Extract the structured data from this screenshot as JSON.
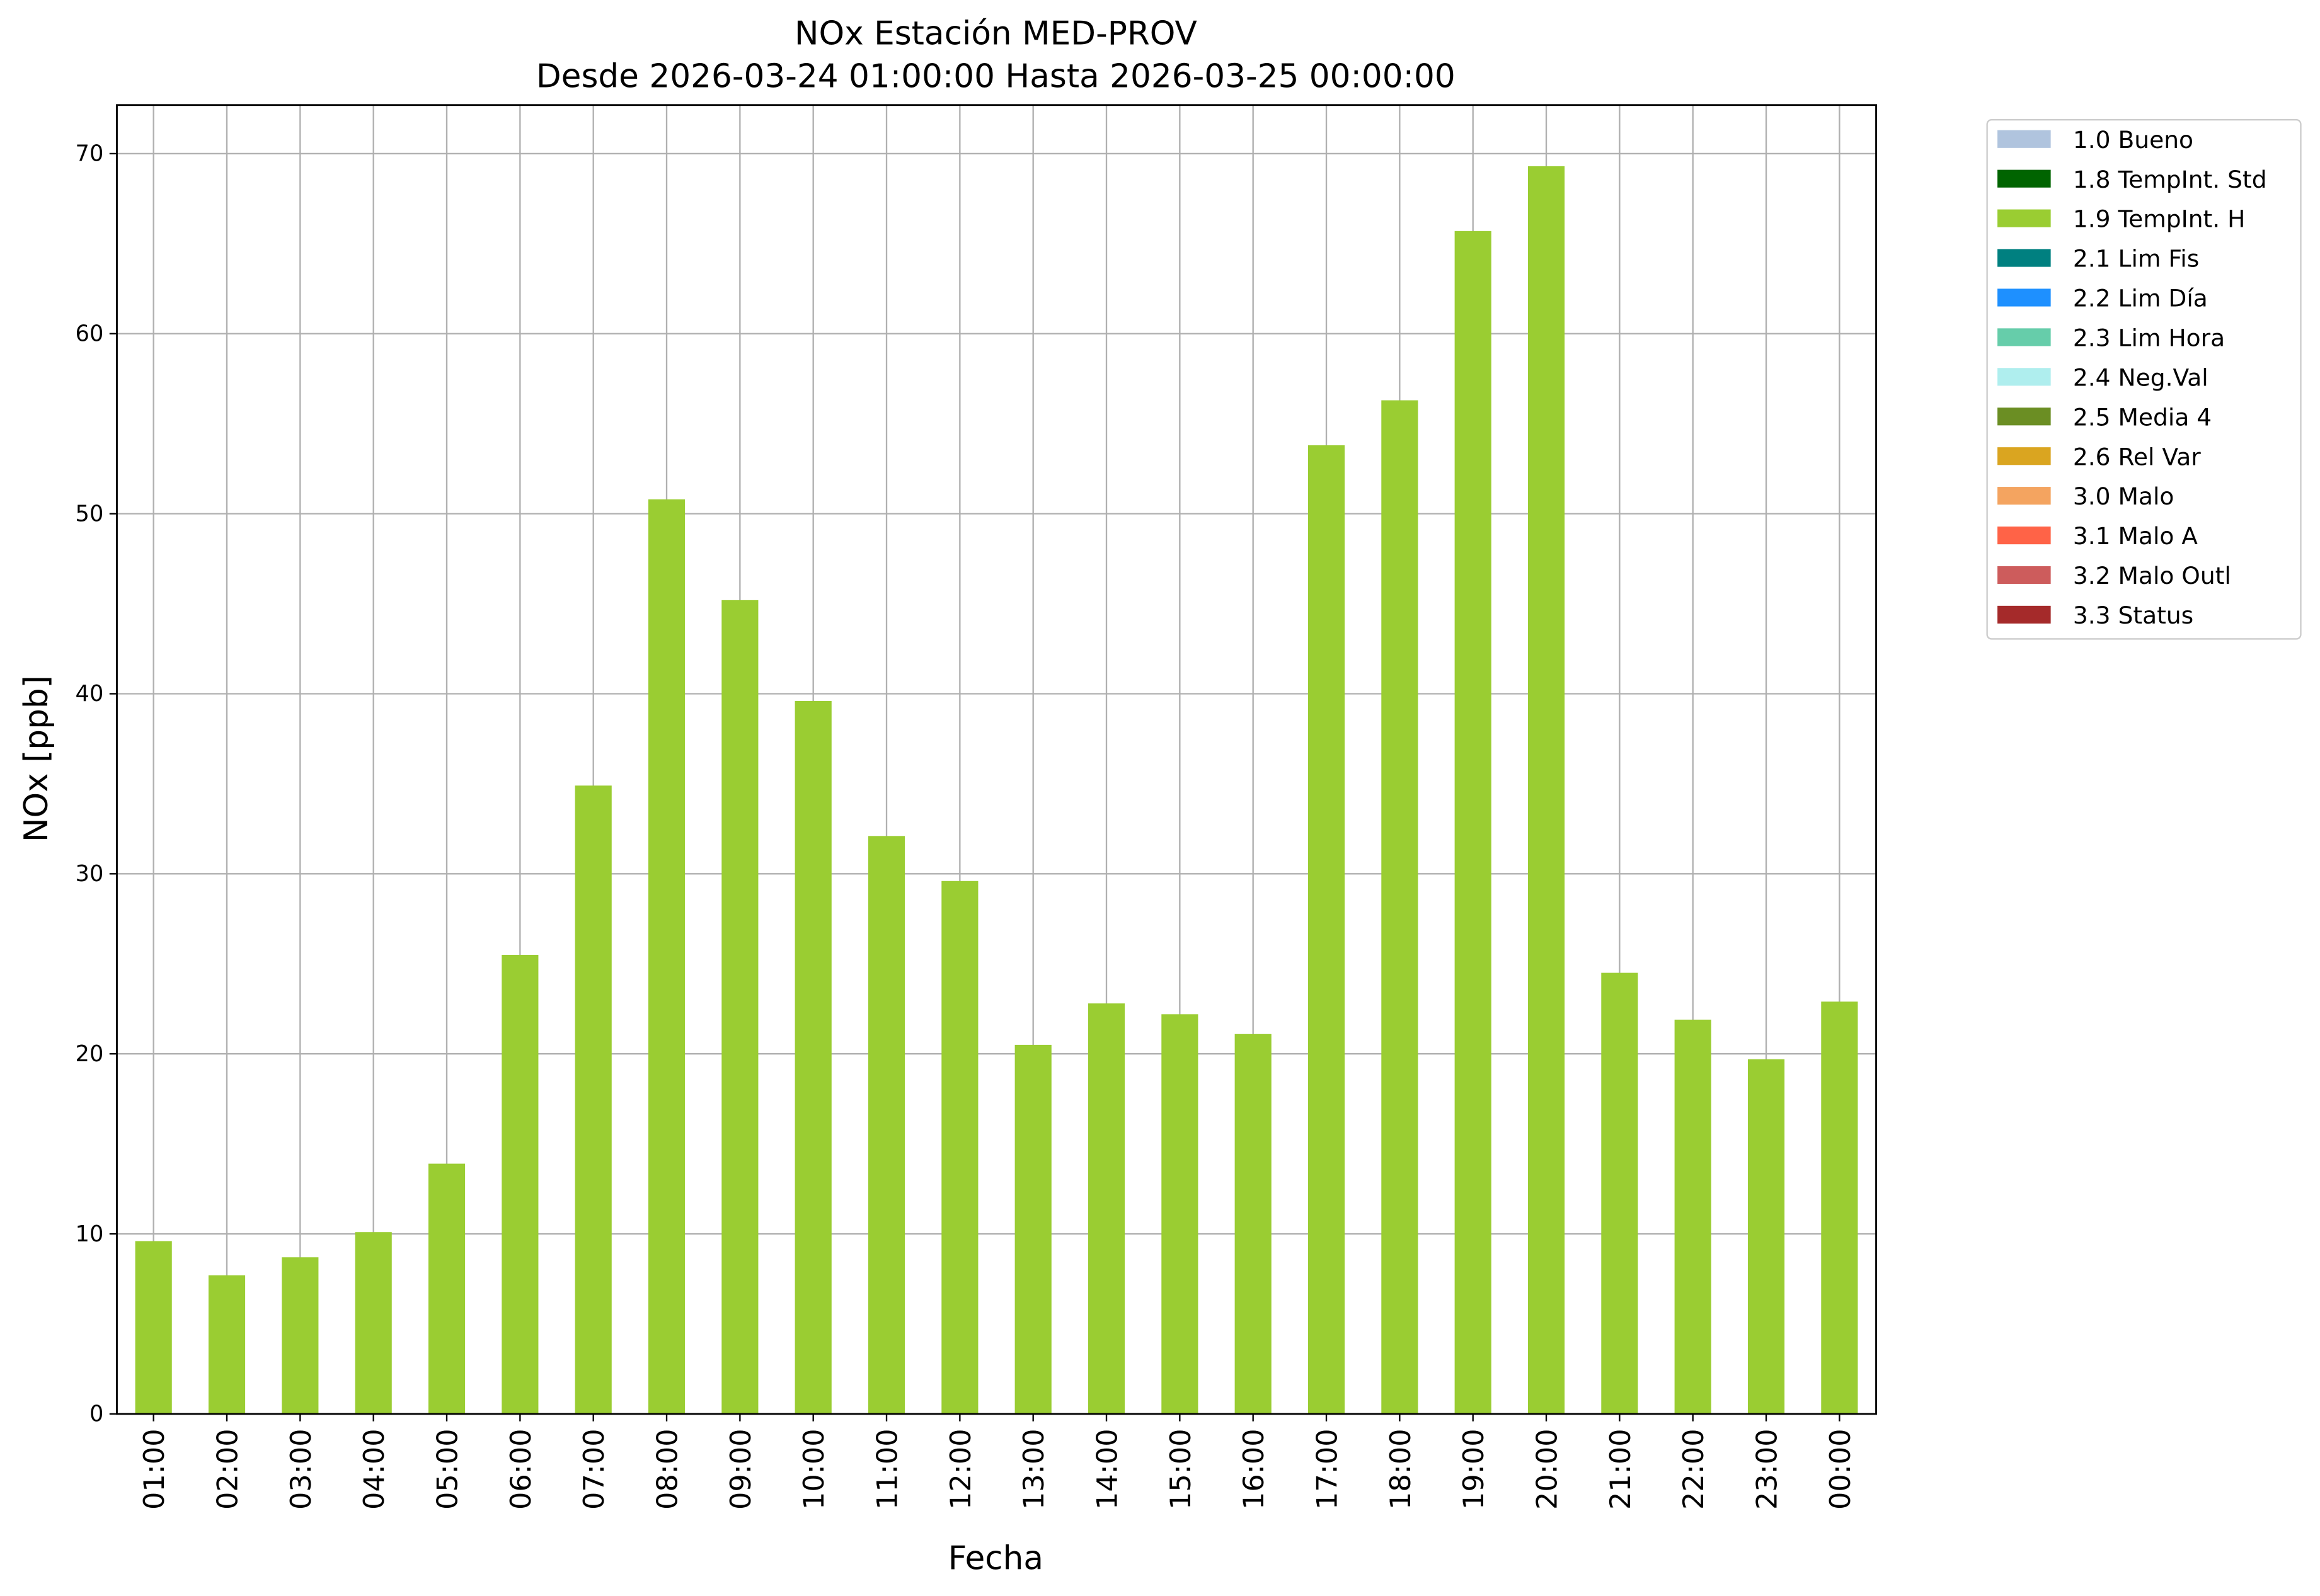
{
  "chart_data": {
    "type": "stacked_bar",
    "title": "NOx Estación MED-PROV",
    "subtitle": "Desde 2026-03-24 01:00:00 Hasta 2026-03-25 00:00:00",
    "x_label": "Fecha",
    "y_label": "NOx [ppb]",
    "categories": [
      "01:00",
      "02:00",
      "03:00",
      "04:00",
      "05:00",
      "06:00",
      "07:00",
      "08:00",
      "09:00",
      "10:00",
      "11:00",
      "12:00",
      "13:00",
      "14:00",
      "15:00",
      "16:00",
      "17:00",
      "18:00",
      "19:00",
      "20:00",
      "21:00",
      "22:00",
      "23:00",
      "00:00"
    ],
    "series": [
      {
        "name": "1.0 Bueno",
        "color": "#b0c4de",
        "values": [
          0,
          0,
          0,
          0,
          0,
          0,
          0,
          0,
          0,
          0,
          0,
          0,
          0,
          0,
          0,
          0,
          0,
          0,
          0,
          0,
          0,
          0,
          0,
          0
        ]
      },
      {
        "name": "1.8 TempInt. Std",
        "color": "#006400",
        "values": [
          0,
          0,
          0,
          0,
          0,
          0,
          0,
          0,
          0,
          0,
          0,
          0,
          0,
          0,
          0,
          0,
          0,
          0,
          0,
          0,
          0,
          0,
          0,
          0
        ]
      },
      {
        "name": "1.9 TempInt. H",
        "color": "#9acd32",
        "values": [
          9.6,
          7.7,
          8.7,
          10.1,
          13.9,
          25.5,
          34.9,
          50.8,
          45.2,
          39.6,
          32.1,
          29.6,
          20.5,
          22.8,
          22.2,
          21.1,
          53.8,
          56.3,
          65.7,
          69.3,
          24.5,
          21.9,
          19.7,
          22.9
        ]
      },
      {
        "name": "2.1 Lim Fis",
        "color": "#008080",
        "values": [
          0,
          0,
          0,
          0,
          0,
          0,
          0,
          0,
          0,
          0,
          0,
          0,
          0,
          0,
          0,
          0,
          0,
          0,
          0,
          0,
          0,
          0,
          0,
          0
        ]
      },
      {
        "name": "2.2 Lim Día",
        "color": "#1e90ff",
        "values": [
          0,
          0,
          0,
          0,
          0,
          0,
          0,
          0,
          0,
          0,
          0,
          0,
          0,
          0,
          0,
          0,
          0,
          0,
          0,
          0,
          0,
          0,
          0,
          0
        ]
      },
      {
        "name": "2.3 Lim Hora",
        "color": "#66cdaa",
        "values": [
          0,
          0,
          0,
          0,
          0,
          0,
          0,
          0,
          0,
          0,
          0,
          0,
          0,
          0,
          0,
          0,
          0,
          0,
          0,
          0,
          0,
          0,
          0,
          0
        ]
      },
      {
        "name": "2.4 Neg.Val",
        "color": "#afeeee",
        "values": [
          0,
          0,
          0,
          0,
          0,
          0,
          0,
          0,
          0,
          0,
          0,
          0,
          0,
          0,
          0,
          0,
          0,
          0,
          0,
          0,
          0,
          0,
          0,
          0
        ]
      },
      {
        "name": "2.5 Media 4",
        "color": "#6b8e23",
        "values": [
          0,
          0,
          0,
          0,
          0,
          0,
          0,
          0,
          0,
          0,
          0,
          0,
          0,
          0,
          0,
          0,
          0,
          0,
          0,
          0,
          0,
          0,
          0,
          0
        ]
      },
      {
        "name": "2.6 Rel Var",
        "color": "#daa520",
        "values": [
          0,
          0,
          0,
          0,
          0,
          0,
          0,
          0,
          0,
          0,
          0,
          0,
          0,
          0,
          0,
          0,
          0,
          0,
          0,
          0,
          0,
          0,
          0,
          0
        ]
      },
      {
        "name": "3.0 Malo",
        "color": "#f4a460",
        "values": [
          0,
          0,
          0,
          0,
          0,
          0,
          0,
          0,
          0,
          0,
          0,
          0,
          0,
          0,
          0,
          0,
          0,
          0,
          0,
          0,
          0,
          0,
          0,
          0
        ]
      },
      {
        "name": "3.1 Malo A",
        "color": "#ff6347",
        "values": [
          0,
          0,
          0,
          0,
          0,
          0,
          0,
          0,
          0,
          0,
          0,
          0,
          0,
          0,
          0,
          0,
          0,
          0,
          0,
          0,
          0,
          0,
          0,
          0
        ]
      },
      {
        "name": "3.2 Malo Outl",
        "color": "#cd5c5c",
        "values": [
          0,
          0,
          0,
          0,
          0,
          0,
          0,
          0,
          0,
          0,
          0,
          0,
          0,
          0,
          0,
          0,
          0,
          0,
          0,
          0,
          0,
          0,
          0,
          0
        ]
      },
      {
        "name": "3.3 Status",
        "color": "#a52a2a",
        "values": [
          0,
          0,
          0,
          0,
          0,
          0,
          0,
          0,
          0,
          0,
          0,
          0,
          0,
          0,
          0,
          0,
          0,
          0,
          0,
          0,
          0,
          0,
          0,
          0
        ]
      }
    ],
    "ylim": [
      0,
      72.7
    ],
    "yticks": [
      0,
      10,
      20,
      30,
      40,
      50,
      60,
      70
    ],
    "grid": true,
    "legend": "outside upper right"
  }
}
